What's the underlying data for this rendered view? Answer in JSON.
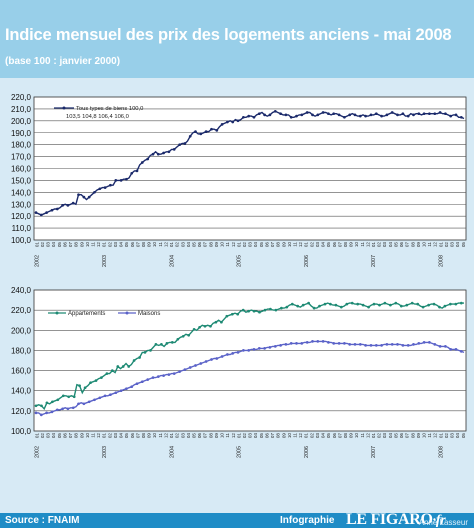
{
  "header": {
    "title": "Indice mensuel des prix des logements anciens - mai 2008",
    "subtitle": "(base 100 : janvier 2000)"
  },
  "footer": {
    "source": "Source : FNAIM",
    "infographie": "Infographie",
    "logo_main": "LE FIGARO",
    "logo_suffix": "·fr",
    "author": "Anne Lasseur"
  },
  "colors": {
    "header_bg": "#98cfe9",
    "body_bg": "#d7eaf5",
    "footer_bg": "#1f8cc6",
    "series_ensemble": "#1b2a6b",
    "series_appartements": "#1e8a74",
    "series_maisons": "#5a62c8"
  },
  "chart_data": [
    {
      "type": "line",
      "legend": [
        "Tous types de biens 100,0",
        "103,5 104,8 106,4 106,0"
      ],
      "ylim": [
        100,
        220
      ],
      "yticks": [
        "100,0",
        "110,0",
        "120,0",
        "130,0",
        "140,0",
        "150,0",
        "160,0",
        "170,0",
        "180,0",
        "190,0",
        "200,0",
        "210,0",
        "220,0"
      ],
      "x_start": "2002-01",
      "x_end": "2008-05",
      "year_labels": [
        "2002",
        "2003",
        "2004",
        "2005",
        "2006",
        "2007",
        "2008"
      ],
      "month_labels": [
        "01",
        "02",
        "03",
        "04",
        "05",
        "06",
        "07",
        "08",
        "09",
        "10",
        "11",
        "12"
      ],
      "series": [
        {
          "values": [
            123,
            122,
            121,
            122,
            123,
            124,
            125,
            126,
            126,
            127,
            129,
            130,
            129,
            130,
            131,
            130,
            138,
            138,
            136,
            134,
            136,
            138,
            140,
            142,
            143,
            144,
            144,
            145,
            146,
            146,
            150,
            150,
            150,
            151,
            151,
            152,
            156,
            158,
            158,
            163,
            165,
            167,
            168,
            171,
            172,
            174,
            172,
            172,
            173,
            174,
            174,
            176,
            176,
            178,
            180,
            181,
            181,
            183,
            187,
            190,
            191,
            189,
            189,
            190,
            191,
            191,
            193,
            193,
            192,
            195,
            197,
            198,
            199,
            200,
            199,
            201,
            200,
            201,
            203,
            203,
            204,
            204,
            203,
            205,
            206,
            207,
            205,
            204,
            205,
            207,
            208,
            207,
            206,
            205,
            205,
            205,
            203,
            203,
            204,
            205,
            205,
            206,
            207,
            207,
            205,
            204,
            205,
            206,
            207,
            207,
            206,
            205,
            206,
            206,
            205,
            204,
            203,
            204,
            205,
            206,
            205,
            204,
            204,
            205,
            204,
            204,
            205,
            205,
            206,
            205,
            204,
            204,
            205,
            206,
            207,
            206,
            205,
            205,
            206,
            204,
            204,
            206,
            205,
            206,
            206,
            205,
            206,
            206,
            206,
            206,
            206,
            206,
            207,
            206,
            206,
            205,
            204,
            205,
            205,
            203,
            203,
            202
          ]
        }
      ]
    },
    {
      "type": "line",
      "ylim": [
        100,
        240
      ],
      "yticks": [
        "100,0",
        "120,0",
        "140,0",
        "160,0",
        "180,0",
        "200,0",
        "220,0",
        "240,0"
      ],
      "x_start": "2002-01",
      "x_end": "2008-05",
      "year_labels": [
        "2002",
        "2003",
        "2004",
        "2005",
        "2006",
        "2007",
        "2008"
      ],
      "month_labels": [
        "01",
        "02",
        "03",
        "04",
        "05",
        "06",
        "07",
        "08",
        "09",
        "10",
        "11",
        "12"
      ],
      "series": [
        {
          "name": "Appartements",
          "values": [
            125,
            126,
            125,
            122,
            128,
            127,
            129,
            130,
            131,
            133,
            135,
            135,
            134,
            135,
            134,
            146,
            145,
            138,
            143,
            145,
            148,
            149,
            150,
            152,
            153,
            155,
            157,
            157,
            160,
            158,
            164,
            162,
            164,
            167,
            164,
            166,
            170,
            172,
            173,
            178,
            178,
            180,
            180,
            183,
            186,
            185,
            186,
            184,
            187,
            188,
            188,
            188,
            191,
            193,
            194,
            196,
            195,
            198,
            201,
            200,
            203,
            205,
            204,
            205,
            204,
            207,
            208,
            210,
            208,
            211,
            214,
            215,
            216,
            217,
            216,
            219,
            220,
            218,
            219,
            220,
            219,
            219,
            218,
            219,
            220,
            221,
            221,
            220,
            220,
            221,
            222,
            222,
            223,
            225,
            226,
            225,
            224,
            223,
            225,
            226,
            227,
            224,
            222,
            222,
            224,
            225,
            226,
            227,
            226,
            225,
            225,
            224,
            223,
            224,
            226,
            227,
            227,
            226,
            226,
            226,
            225,
            224,
            223,
            225,
            226,
            226,
            225,
            226,
            227,
            226,
            225,
            226,
            227,
            226,
            224,
            224,
            225,
            226,
            227,
            226,
            226,
            224,
            223,
            224,
            225,
            226,
            226,
            225,
            223,
            222,
            224,
            225,
            226,
            226,
            226,
            227,
            227,
            227
          ]
        },
        {
          "name": "Maisons",
          "values": [
            118,
            118,
            116,
            117,
            118,
            118,
            119,
            120,
            121,
            121,
            122,
            123,
            122,
            123,
            123,
            124,
            127,
            128,
            127,
            128,
            129,
            130,
            131,
            132,
            133,
            134,
            135,
            135,
            136,
            137,
            138,
            139,
            140,
            141,
            142,
            143,
            144,
            146,
            147,
            148,
            149,
            150,
            151,
            152,
            153,
            153,
            154,
            155,
            155,
            156,
            156,
            157,
            157,
            158,
            159,
            160,
            161,
            162,
            163,
            164,
            165,
            166,
            167,
            168,
            169,
            170,
            171,
            172,
            172,
            173,
            174,
            175,
            176,
            176,
            177,
            178,
            178,
            179,
            180,
            180,
            180,
            181,
            181,
            181,
            182,
            182,
            182,
            183,
            183,
            184,
            184,
            185,
            185,
            186,
            186,
            186,
            187,
            187,
            187,
            187,
            187,
            188,
            188,
            188,
            189,
            189,
            189,
            189,
            189,
            189,
            188,
            188,
            187,
            187,
            187,
            187,
            187,
            187,
            186,
            186,
            186,
            186,
            186,
            186,
            185,
            185,
            185,
            185,
            185,
            185,
            185,
            186,
            186,
            186,
            186,
            186,
            186,
            186,
            185,
            185,
            185,
            185,
            186,
            186,
            187,
            187,
            188,
            188,
            188,
            187,
            186,
            185,
            184,
            184,
            184,
            183,
            181,
            181,
            181,
            180,
            179,
            178
          ]
        }
      ]
    }
  ]
}
